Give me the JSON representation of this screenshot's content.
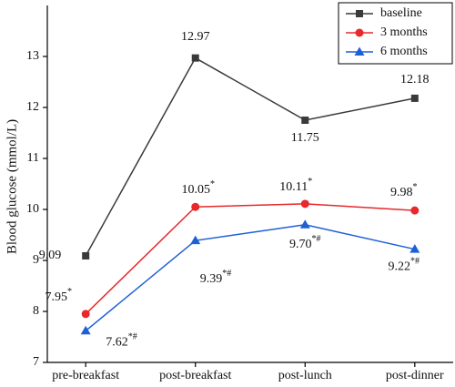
{
  "chart_data": {
    "type": "line",
    "y_label": "Blood glucose (mmol/L)",
    "categories": [
      "pre-breakfast",
      "post-breakfast",
      "post-lunch",
      "post-dinner"
    ],
    "ylim": [
      7,
      14
    ],
    "yticks": [
      7,
      8,
      9,
      10,
      11,
      12,
      13
    ],
    "legend": "top-right",
    "series": [
      {
        "name": "baseline",
        "color": "#3a3a3a",
        "marker": "square",
        "values": [
          9.09,
          12.97,
          11.75,
          12.18
        ]
      },
      {
        "name": "3 months",
        "color": "#e8282b",
        "marker": "circle",
        "values": [
          7.95,
          10.05,
          10.11,
          9.98
        ],
        "value_labels": [
          "7.95*",
          "10.05*",
          "10.11*",
          "9.98*"
        ]
      },
      {
        "name": "6 months",
        "color": "#1f5fd6",
        "marker": "triangle",
        "values": [
          7.62,
          9.39,
          9.7,
          9.22
        ],
        "value_labels": [
          "7.62*#",
          "9.39*#",
          "9.70*#",
          "9.22*#"
        ]
      }
    ]
  }
}
